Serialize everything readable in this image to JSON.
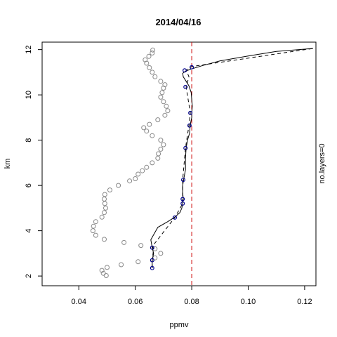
{
  "chart_data": {
    "type": "line",
    "title": "2014/04/16",
    "xlabel": "ppmv",
    "ylabel": "km",
    "right_label": "no.layers=0",
    "xlim": [
      0.027,
      0.124
    ],
    "ylim": [
      1.57,
      12.33
    ],
    "x_ticks": [
      0.04,
      0.06,
      0.08,
      0.1,
      0.12
    ],
    "x_tick_labels": [
      "0.04",
      "0.06",
      "0.08",
      "0.10",
      "0.12"
    ],
    "y_ticks": [
      2,
      4,
      6,
      8,
      10,
      12
    ],
    "y_tick_labels": [
      "2",
      "4",
      "6",
      "8",
      "10",
      "12"
    ],
    "grid": false,
    "reference_line": {
      "x": 0.08,
      "color": "#cc0000",
      "style": "dashed"
    },
    "series": [
      {
        "kind": "scatter",
        "color": "#888888",
        "points": [
          [
            0.0497,
            2.02
          ],
          [
            0.0487,
            2.12
          ],
          [
            0.0482,
            2.25
          ],
          [
            0.05,
            2.38
          ],
          [
            0.055,
            2.5
          ],
          [
            0.061,
            2.63
          ],
          [
            0.067,
            2.8
          ],
          [
            0.069,
            3.0
          ],
          [
            0.067,
            3.2
          ],
          [
            0.062,
            3.35
          ],
          [
            0.056,
            3.48
          ],
          [
            0.049,
            3.62
          ],
          [
            0.046,
            3.8
          ],
          [
            0.045,
            4.0
          ],
          [
            0.0452,
            4.2
          ],
          [
            0.046,
            4.4
          ],
          [
            0.0482,
            4.6
          ],
          [
            0.049,
            4.8
          ],
          [
            0.0495,
            5.0
          ],
          [
            0.0492,
            5.2
          ],
          [
            0.049,
            5.4
          ],
          [
            0.0492,
            5.6
          ],
          [
            0.051,
            5.8
          ],
          [
            0.054,
            6.0
          ],
          [
            0.058,
            6.2
          ],
          [
            0.06,
            6.3
          ],
          [
            0.061,
            6.5
          ],
          [
            0.0625,
            6.65
          ],
          [
            0.064,
            6.8
          ],
          [
            0.066,
            7.0
          ],
          [
            0.068,
            7.2
          ],
          [
            0.0682,
            7.4
          ],
          [
            0.069,
            7.6
          ],
          [
            0.07,
            7.8
          ],
          [
            0.069,
            8.0
          ],
          [
            0.066,
            8.2
          ],
          [
            0.064,
            8.4
          ],
          [
            0.063,
            8.55
          ],
          [
            0.065,
            8.7
          ],
          [
            0.068,
            8.9
          ],
          [
            0.0705,
            9.1
          ],
          [
            0.0715,
            9.3
          ],
          [
            0.071,
            9.5
          ],
          [
            0.07,
            9.7
          ],
          [
            0.069,
            9.9
          ],
          [
            0.0695,
            10.1
          ],
          [
            0.07,
            10.3
          ],
          [
            0.0705,
            10.45
          ],
          [
            0.069,
            10.6
          ],
          [
            0.067,
            10.8
          ],
          [
            0.066,
            11.0
          ],
          [
            0.065,
            11.2
          ],
          [
            0.064,
            11.4
          ],
          [
            0.0635,
            11.55
          ],
          [
            0.0648,
            11.7
          ],
          [
            0.066,
            11.85
          ],
          [
            0.0662,
            11.98
          ]
        ]
      },
      {
        "kind": "line",
        "color": "#000000",
        "style": "solid",
        "points": [
          [
            0.066,
            2.35
          ],
          [
            0.066,
            2.7
          ],
          [
            0.0665,
            3.0
          ],
          [
            0.066,
            3.25
          ],
          [
            0.0655,
            3.6
          ],
          [
            0.068,
            4.15
          ],
          [
            0.0715,
            4.4
          ],
          [
            0.074,
            4.6
          ],
          [
            0.0758,
            4.8
          ],
          [
            0.0765,
            5.0
          ],
          [
            0.0768,
            5.2
          ],
          [
            0.077,
            5.4
          ],
          [
            0.0768,
            5.7
          ],
          [
            0.0768,
            6.0
          ],
          [
            0.0772,
            6.3
          ],
          [
            0.0778,
            6.7
          ],
          [
            0.0778,
            7.2
          ],
          [
            0.078,
            7.65
          ],
          [
            0.0785,
            8.0
          ],
          [
            0.0792,
            8.3
          ],
          [
            0.0795,
            8.7
          ],
          [
            0.08,
            9.0
          ],
          [
            0.08,
            9.2
          ],
          [
            0.0802,
            9.5
          ],
          [
            0.08,
            9.8
          ],
          [
            0.0798,
            10.1
          ],
          [
            0.079,
            10.4
          ],
          [
            0.078,
            10.6
          ],
          [
            0.077,
            10.8
          ],
          [
            0.0768,
            10.95
          ],
          [
            0.0778,
            11.05
          ],
          [
            0.08,
            11.15
          ],
          [
            0.084,
            11.3
          ],
          [
            0.09,
            11.5
          ],
          [
            0.1,
            11.72
          ],
          [
            0.11,
            11.92
          ],
          [
            0.123,
            12.05
          ]
        ]
      },
      {
        "kind": "line",
        "color": "#000000",
        "style": "dashed",
        "points": [
          [
            0.066,
            2.35
          ],
          [
            0.066,
            2.7
          ],
          [
            0.0665,
            3.2
          ],
          [
            0.066,
            3.3
          ],
          [
            0.074,
            4.58
          ],
          [
            0.0768,
            5.2
          ],
          [
            0.0768,
            5.5
          ],
          [
            0.0768,
            6.25
          ],
          [
            0.0778,
            7.65
          ],
          [
            0.079,
            8.65
          ],
          [
            0.0795,
            9.2
          ],
          [
            0.078,
            10.35
          ],
          [
            0.079,
            10.8
          ],
          [
            0.078,
            11.1
          ],
          [
            0.08,
            11.25
          ],
          [
            0.123,
            12.05
          ]
        ]
      },
      {
        "kind": "scatter",
        "color": "#00008b",
        "points": [
          [
            0.066,
            2.35
          ],
          [
            0.066,
            2.7
          ],
          [
            0.066,
            3.25
          ],
          [
            0.074,
            4.58
          ],
          [
            0.0768,
            5.2
          ],
          [
            0.0768,
            5.4
          ],
          [
            0.077,
            6.25
          ],
          [
            0.0778,
            7.65
          ],
          [
            0.0792,
            8.65
          ],
          [
            0.0795,
            9.2
          ],
          [
            0.0778,
            10.35
          ],
          [
            0.0775,
            11.08
          ],
          [
            0.08,
            11.22
          ]
        ]
      }
    ]
  }
}
